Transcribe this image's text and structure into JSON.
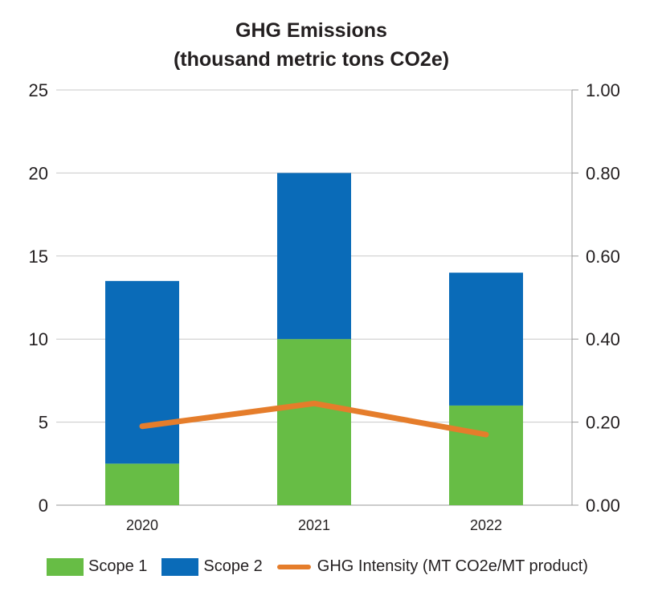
{
  "chart_data": {
    "type": "bar",
    "title_line1": "GHG Emissions",
    "title_line2": "(thousand metric tons CO2e)",
    "categories": [
      "2020",
      "2021",
      "2022"
    ],
    "series": [
      {
        "name": "Scope 1",
        "kind": "stacked-bar",
        "axis": "left",
        "color": "#67bd45",
        "values": [
          2.5,
          10.0,
          6.0
        ]
      },
      {
        "name": "Scope 2",
        "kind": "stacked-bar",
        "axis": "left",
        "color": "#0a6bb8",
        "values": [
          11.0,
          10.0,
          8.0
        ]
      },
      {
        "name": "GHG Intensity (MT CO2e/MT product)",
        "kind": "line",
        "axis": "right",
        "color": "#e57d2b",
        "values": [
          0.19,
          0.245,
          0.17
        ]
      }
    ],
    "y_left": {
      "min": 0,
      "max": 25,
      "ticks": [
        "0",
        "5",
        "10",
        "15",
        "20",
        "25"
      ]
    },
    "y_right": {
      "min": 0,
      "max": 1,
      "ticks": [
        "0.00",
        "0.20",
        "0.40",
        "0.60",
        "0.80",
        "1.00"
      ]
    },
    "grid": true,
    "legend_position": "bottom"
  }
}
